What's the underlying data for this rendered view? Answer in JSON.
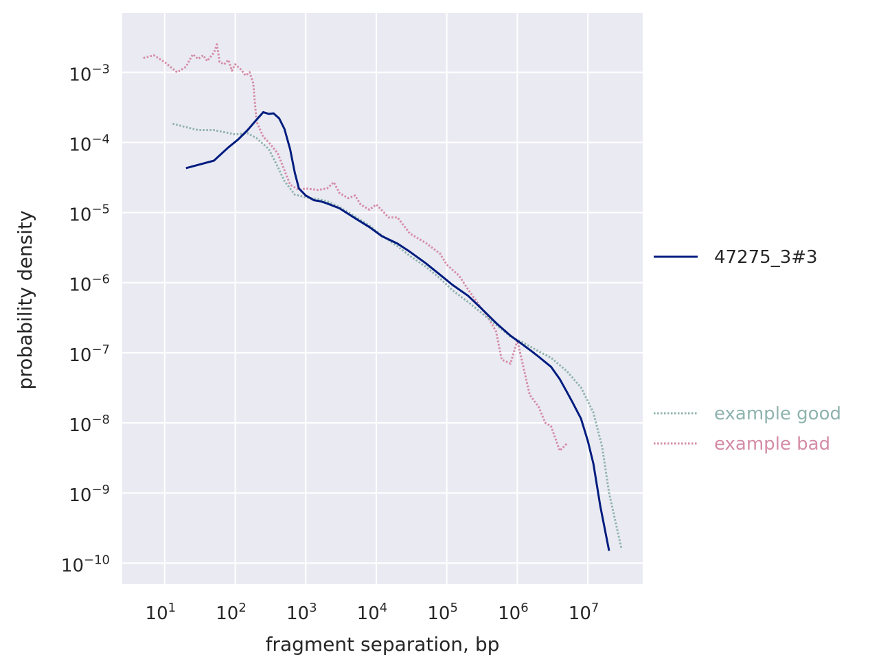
{
  "chart_data": {
    "type": "line",
    "title": "",
    "xlabel": "fragment separation, bp",
    "ylabel": "probability density",
    "xscale": "log",
    "yscale": "log",
    "xlim": [
      2.5,
      60000000
    ],
    "ylim": [
      5e-11,
      0.007
    ],
    "grid": true,
    "background": "#eaeaf2",
    "x_ticks": [
      {
        "base": "10",
        "exp": "1",
        "value": 10
      },
      {
        "base": "10",
        "exp": "2",
        "value": 100
      },
      {
        "base": "10",
        "exp": "3",
        "value": 1000
      },
      {
        "base": "10",
        "exp": "4",
        "value": 10000
      },
      {
        "base": "10",
        "exp": "5",
        "value": 100000
      },
      {
        "base": "10",
        "exp": "6",
        "value": 1000000
      },
      {
        "base": "10",
        "exp": "7",
        "value": 10000000
      }
    ],
    "y_ticks": [
      {
        "base": "10",
        "exp": "−3",
        "value": 0.001
      },
      {
        "base": "10",
        "exp": "−4",
        "value": 0.0001
      },
      {
        "base": "10",
        "exp": "−5",
        "value": 1e-05
      },
      {
        "base": "10",
        "exp": "−6",
        "value": 1e-06
      },
      {
        "base": "10",
        "exp": "−7",
        "value": 1e-07
      },
      {
        "base": "10",
        "exp": "−8",
        "value": 1e-08
      },
      {
        "base": "10",
        "exp": "−9",
        "value": 1e-09
      },
      {
        "base": "10",
        "exp": "−10",
        "value": 1e-10
      }
    ],
    "legend_position": "right",
    "series": [
      {
        "name": "47275_3#3",
        "color": "#001c7f",
        "style": "solid",
        "x": [
          20,
          50,
          80,
          110,
          150,
          200,
          250,
          300,
          350,
          420,
          500,
          600,
          700,
          800,
          1000,
          1300,
          1600,
          2000,
          3000,
          5000,
          8000,
          12000,
          20000,
          30000,
          50000,
          80000,
          120000,
          200000,
          300000,
          500000,
          800000,
          1200000,
          1600000,
          2000000,
          3000000,
          4000000,
          5000000,
          6000000,
          8000000,
          10000000,
          12000000,
          15000000,
          20000000
        ],
        "y": [
          4.3e-05,
          5.5e-05,
          8.5e-05,
          0.00011,
          0.00015,
          0.00021,
          0.00027,
          0.000255,
          0.00026,
          0.00022,
          0.000155,
          8e-05,
          3.7e-05,
          2.2e-05,
          1.75e-05,
          1.5e-05,
          1.45e-05,
          1.35e-05,
          1.15e-05,
          8.3e-06,
          6.2e-06,
          4.6e-06,
          3.6e-06,
          2.75e-06,
          1.9e-06,
          1.3e-06,
          9.3e-07,
          6.5e-07,
          4.4e-07,
          2.65e-07,
          1.75e-07,
          1.3e-07,
          1.05e-07,
          8.8e-08,
          6.3e-08,
          4.2e-08,
          2.8e-08,
          2e-08,
          1.15e-08,
          5.5e-09,
          2.6e-09,
          6.5e-10,
          1.5e-10
        ]
      },
      {
        "name": "example good",
        "color": "#8fb3ae",
        "style": "dotted",
        "x": [
          13,
          20,
          30,
          50,
          70,
          100,
          150,
          200,
          300,
          400,
          500,
          700,
          1000,
          1500,
          2000,
          3000,
          5000,
          8000,
          12000,
          20000,
          30000,
          50000,
          80000,
          120000,
          200000,
          300000,
          500000,
          800000,
          1200000,
          2000000,
          3000000,
          5000000,
          8000000,
          12000000,
          16000000,
          20000000,
          30000000
        ],
        "y": [
          0.000185,
          0.000165,
          0.00015,
          0.00015,
          0.00014,
          0.00013,
          0.000135,
          0.000115,
          8e-05,
          4.5e-05,
          2.8e-05,
          1.8e-05,
          1.65e-05,
          1.55e-05,
          1.45e-05,
          1.2e-05,
          8.8e-06,
          6.5e-06,
          4.7e-06,
          3.3e-06,
          2.4e-06,
          1.7e-06,
          1.15e-06,
          7.8e-07,
          5.3e-07,
          3.8e-07,
          2.5e-07,
          1.7e-07,
          1.4e-07,
          1.05e-07,
          8.5e-08,
          5.5e-08,
          3.2e-08,
          1.4e-08,
          4.5e-09,
          1e-09,
          1.6e-10
        ]
      },
      {
        "name": "example bad",
        "color": "#d48ca6",
        "style": "dotted",
        "x": [
          5,
          7,
          10,
          15,
          20,
          25,
          30,
          35,
          40,
          50,
          55,
          60,
          70,
          80,
          90,
          100,
          120,
          140,
          160,
          180,
          200,
          250,
          300,
          400,
          500,
          600,
          800,
          1000,
          1500,
          2000,
          2500,
          3000,
          4000,
          5000,
          6000,
          8000,
          10000,
          15000,
          20000,
          30000,
          50000,
          80000,
          100000,
          150000,
          200000,
          300000,
          400000,
          500000,
          600000,
          800000,
          1000000,
          1500000,
          2000000,
          2500000,
          3000000,
          4000000,
          5000000
        ],
        "y": [
          0.0016,
          0.00175,
          0.0014,
          0.001,
          0.0012,
          0.0018,
          0.00155,
          0.00175,
          0.00145,
          0.0019,
          0.0025,
          0.0014,
          0.0013,
          0.0015,
          0.00105,
          0.0013,
          0.0011,
          0.0009,
          0.001,
          0.0007,
          0.0002,
          0.00012,
          0.0001,
          7e-05,
          4e-05,
          2.5e-05,
          2.1e-05,
          2.2e-05,
          2.1e-05,
          2.2e-05,
          2.7e-05,
          1.9e-05,
          1.6e-05,
          1.75e-05,
          1.3e-05,
          1.1e-05,
          1.3e-05,
          8.5e-06,
          8.5e-06,
          5e-06,
          3.7e-06,
          2.6e-06,
          1.8e-06,
          1.25e-06,
          8e-07,
          4.5e-07,
          3e-07,
          2e-07,
          8e-08,
          7e-08,
          1.5e-07,
          2.5e-08,
          1.7e-08,
          1e-08,
          9e-09,
          4e-09,
          5e-09
        ]
      }
    ]
  }
}
